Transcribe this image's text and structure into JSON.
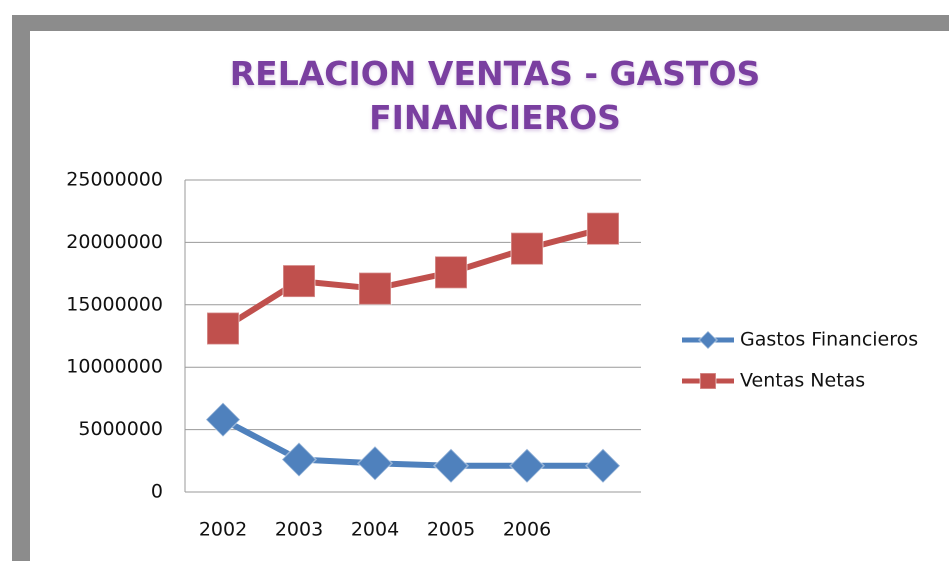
{
  "chart_data": {
    "type": "line",
    "title": "RELACION VENTAS - GASTOS FINANCIEROS",
    "categories": [
      "2002",
      "2003",
      "2004",
      "2005",
      "2006",
      null
    ],
    "series": [
      {
        "name": "Gastos Financieros",
        "color": "#4f81bd",
        "marker": "diamond",
        "values": [
          5800000,
          2600000,
          2300000,
          2100000,
          2100000,
          2100000
        ]
      },
      {
        "name": "Ventas Netas",
        "color": "#c0504d",
        "marker": "square",
        "values": [
          13100000,
          16900000,
          16300000,
          17600000,
          19500000,
          21100000
        ]
      }
    ],
    "ylim": [
      0,
      25000000
    ],
    "yticks": [
      0,
      5000000,
      10000000,
      15000000,
      20000000,
      25000000
    ],
    "grid": true,
    "legend": "right"
  }
}
